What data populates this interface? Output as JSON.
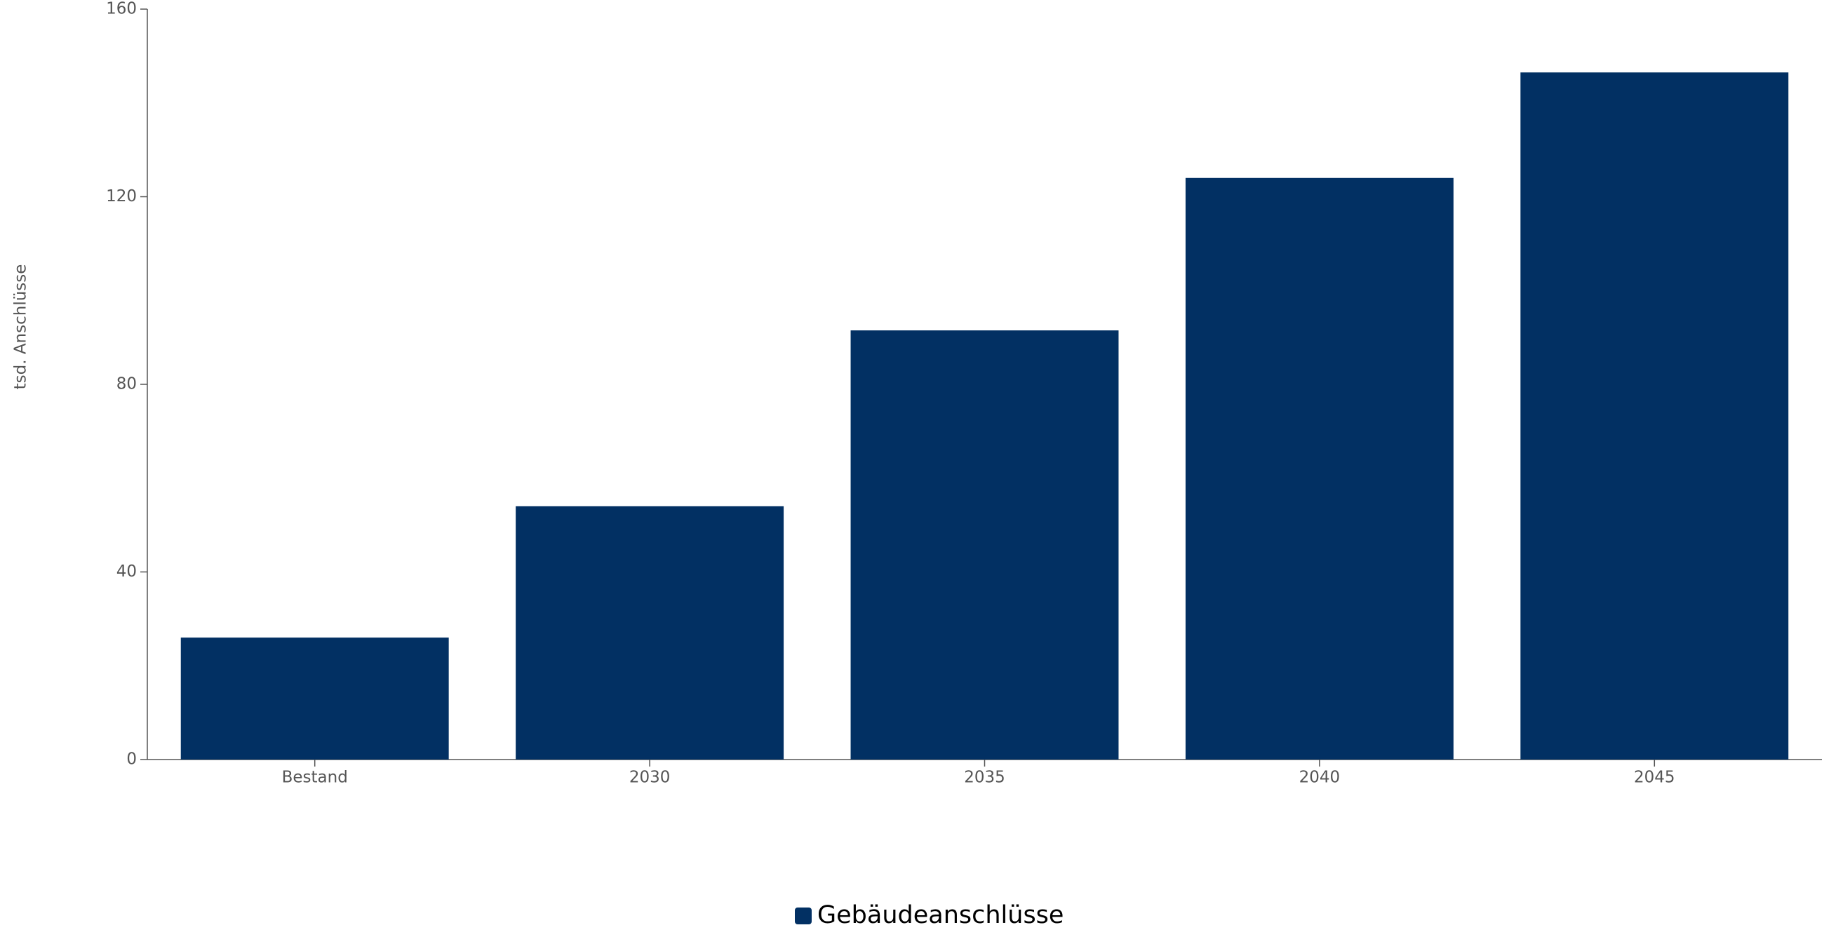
{
  "chart_data": {
    "type": "bar",
    "y_label": "tsd. Anschlüsse",
    "categories": [
      "Bestand",
      "2030",
      "2035",
      "2040",
      "2045"
    ],
    "series": [
      {
        "name": "Gebäudeanschlüsse",
        "color": "#023063",
        "values": [
          26,
          54,
          91.5,
          124,
          146.5
        ]
      }
    ],
    "ylim": [
      0,
      160
    ],
    "yticks": [
      0,
      40,
      80,
      120,
      160
    ],
    "grid": false,
    "legend": "bottom"
  }
}
